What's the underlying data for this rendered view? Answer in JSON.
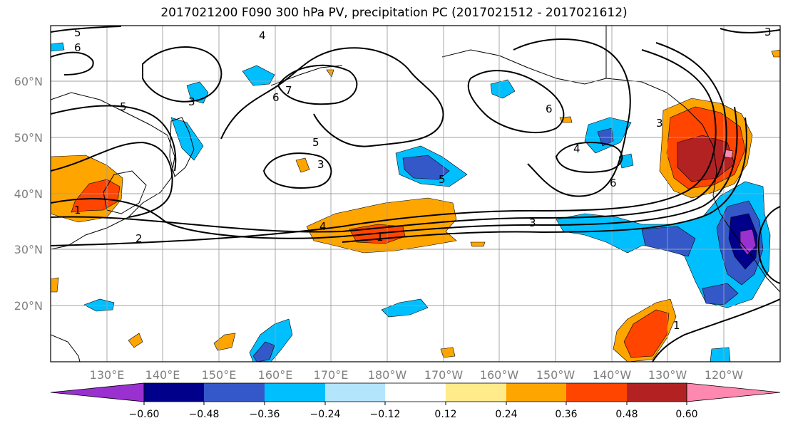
{
  "title": "2017021200 F090 300 hPa PV, precipitation PC (2017021512 - 2017021612)",
  "lat_labels": [
    "60°N",
    "50°N",
    "40°N",
    "30°N",
    "20°N"
  ],
  "lon_labels": [
    "130°E",
    "140°E",
    "150°E",
    "160°E",
    "170°E",
    "180°W",
    "170°W",
    "160°W",
    "150°W",
    "140°W",
    "130°W",
    "120°W"
  ],
  "colorbar": {
    "colors": [
      "#9b30d0",
      "#00008b",
      "#3558c8",
      "#00bfff",
      "#b3e5fc",
      "#ffffff",
      "#ffeb8a",
      "#ffa500",
      "#ff4500",
      "#b22222",
      "#ff88b0"
    ],
    "tick_labels": [
      "−0.60",
      "−0.48",
      "−0.36",
      "−0.24",
      "−0.12",
      "0.12",
      "0.24",
      "0.36",
      "0.48",
      "0.60"
    ]
  },
  "contour_labels": [
    "5",
    "6",
    "4",
    "3",
    "7",
    "6",
    "5",
    "3",
    "5",
    "4",
    "6",
    "6",
    "5",
    "3",
    "4",
    "1",
    "1",
    "2",
    "3",
    "1",
    "3"
  ]
}
